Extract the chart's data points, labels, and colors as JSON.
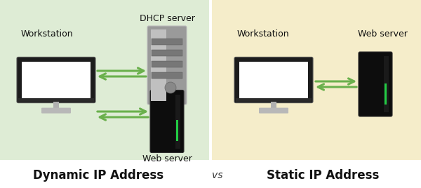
{
  "bg_left": "#deecd5",
  "bg_right": "#f5edca",
  "bg_bottom": "#ffffff",
  "arrow_color": "#6ab04c",
  "title_left": "Dynamic IP Address",
  "title_right": "Static IP Address",
  "vs_text": "vs",
  "title_fontsize": 12,
  "vs_fontsize": 10,
  "label_fontsize": 9,
  "left_workstation_label": "Workstation",
  "left_dhcp_label": "DHCP server",
  "left_web_label": "Web server",
  "right_workstation_label": "Workstation",
  "right_web_label": "Web server"
}
